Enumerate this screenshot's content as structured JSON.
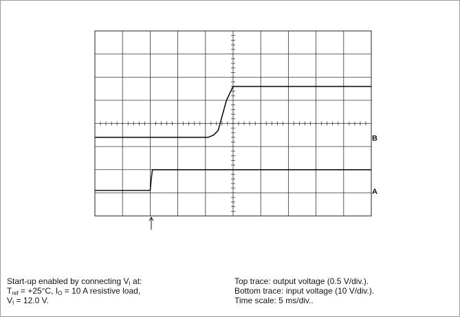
{
  "chart_data": {
    "type": "line",
    "title": "",
    "grid": true,
    "divisions": {
      "x": 10,
      "y": 8
    },
    "x_unit": "ms",
    "x_per_div": 5,
    "xlim": [
      0,
      50
    ],
    "series": [
      {
        "trace": "top",
        "volts_per_div": 0.5,
        "x": [
          0,
          20.5,
          21.5,
          22.3,
          23.8,
          25.0,
          50
        ],
        "y": [
          3.4,
          3.4,
          3.5,
          3.7,
          5.0,
          5.6,
          5.6
        ]
      },
      {
        "trace": "bottom",
        "volts_per_div": 10,
        "x": [
          0,
          10.0,
          10.2,
          10.4,
          50
        ],
        "y": [
          1.1,
          1.1,
          1.6,
          2.0,
          2.0
        ]
      }
    ],
    "markers": {
      "right_markers": [
        "B",
        "A"
      ],
      "trigger_arrow_x": 10.2
    }
  },
  "caption": {
    "left": {
      "line1_pre": "Start-up enabled by connecting V",
      "line1_sub": "I",
      "line1_post": " at:",
      "line2_a": "T",
      "line2_a_sub": "ref",
      "line2_b": " = +25°C, I",
      "line2_b_sub": "O",
      "line2_c": " = 10 A resistive load,",
      "line3_a": "V",
      "line3_a_sub": "I",
      "line3_b": " = 12.0 V."
    },
    "right": {
      "line1": "Top trace: output voltage (0.5 V/div.).",
      "line2": "Bottom trace: input voltage (10 V/div.).",
      "line3": "Time scale: 5 ms/div.."
    }
  }
}
